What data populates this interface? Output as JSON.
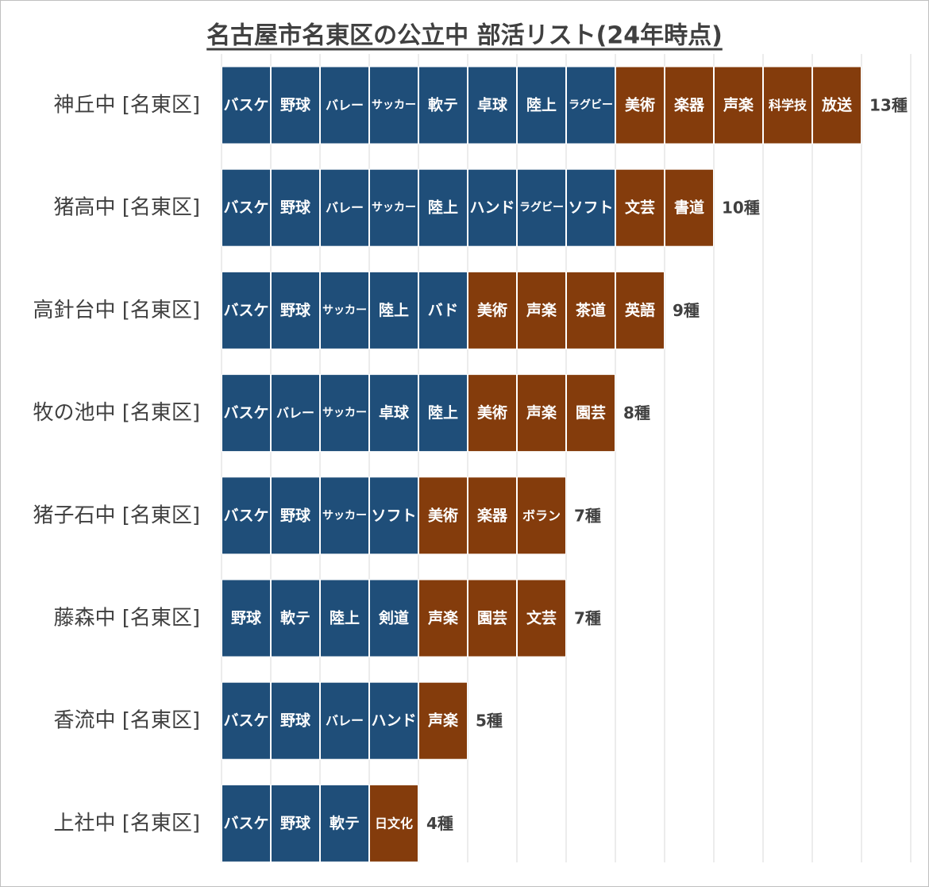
{
  "title": "名古屋市名東区の公立中 部活リスト(24年時点)",
  "colors": {
    "sports": "#1f4e79",
    "culture": "#843c0c"
  },
  "rows": [
    {
      "school": "神丘中 [名東区]",
      "sports": [
        "バスケ",
        "野球",
        "バレー",
        "サッカー",
        "軟テ",
        "卓球",
        "陸上",
        "ラグビー"
      ],
      "culture": [
        "美術",
        "楽器",
        "声楽",
        "科学技",
        "放送"
      ],
      "total": "13種"
    },
    {
      "school": "猪高中 [名東区]",
      "sports": [
        "バスケ",
        "野球",
        "バレー",
        "サッカー",
        "陸上",
        "ハンド",
        "ラグビー",
        "ソフト"
      ],
      "culture": [
        "文芸",
        "書道"
      ],
      "total": "10種"
    },
    {
      "school": "高針台中 [名東区]",
      "sports": [
        "バスケ",
        "野球",
        "サッカー",
        "陸上",
        "バド"
      ],
      "culture": [
        "美術",
        "声楽",
        "茶道",
        "英語"
      ],
      "total": "9種"
    },
    {
      "school": "牧の池中 [名東区]",
      "sports": [
        "バスケ",
        "バレー",
        "サッカー",
        "卓球",
        "陸上"
      ],
      "culture": [
        "美術",
        "声楽",
        "園芸"
      ],
      "total": "8種"
    },
    {
      "school": "猪子石中 [名東区]",
      "sports": [
        "バスケ",
        "野球",
        "サッカー",
        "ソフト"
      ],
      "culture": [
        "美術",
        "楽器",
        "ボラン"
      ],
      "total": "7種"
    },
    {
      "school": "藤森中 [名東区]",
      "sports": [
        "野球",
        "軟テ",
        "陸上",
        "剣道"
      ],
      "culture": [
        "声楽",
        "園芸",
        "文芸"
      ],
      "total": "7種"
    },
    {
      "school": "香流中 [名東区]",
      "sports": [
        "バスケ",
        "野球",
        "バレー",
        "ハンド"
      ],
      "culture": [
        "声楽"
      ],
      "total": "5種"
    },
    {
      "school": "上社中 [名東区]",
      "sports": [
        "バスケ",
        "野球",
        "軟テ"
      ],
      "culture": [
        "日文化"
      ],
      "total": "4種"
    }
  ]
}
